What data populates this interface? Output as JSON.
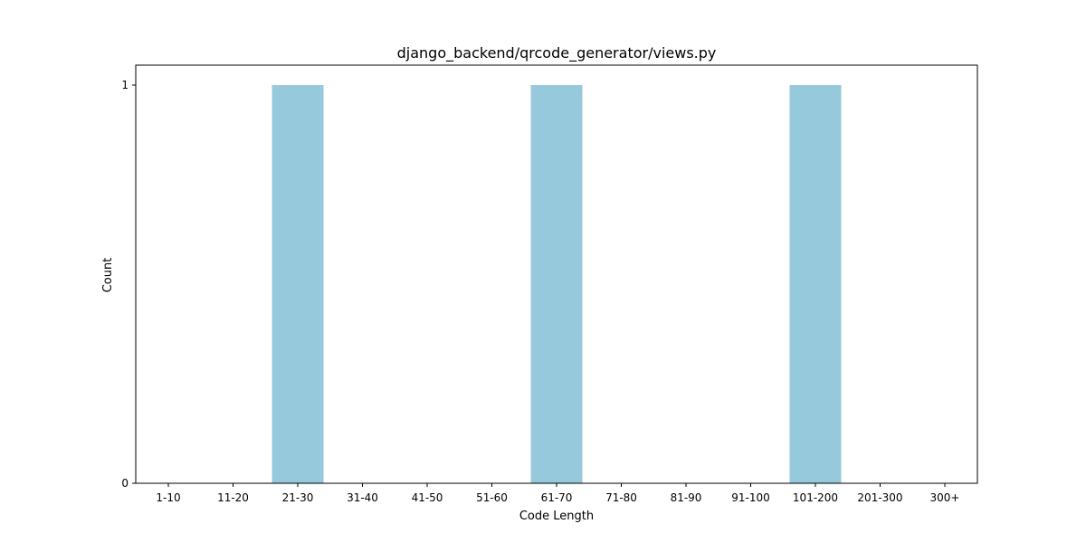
{
  "chart_data": {
    "type": "bar",
    "title": "django_backend/qrcode_generator/views.py",
    "xlabel": "Code Length",
    "ylabel": "Count",
    "categories": [
      "1-10",
      "11-20",
      "21-30",
      "31-40",
      "41-50",
      "51-60",
      "61-70",
      "71-80",
      "81-90",
      "91-100",
      "101-200",
      "201-300",
      "300+"
    ],
    "values": [
      0,
      0,
      1,
      0,
      0,
      0,
      1,
      0,
      0,
      0,
      1,
      0,
      0
    ],
    "ylim": [
      0,
      1.05
    ],
    "yticks": [
      0,
      1
    ],
    "ytick_labels": [
      "0",
      "1"
    ],
    "grid": false,
    "bar_color": "#96c9dc"
  }
}
